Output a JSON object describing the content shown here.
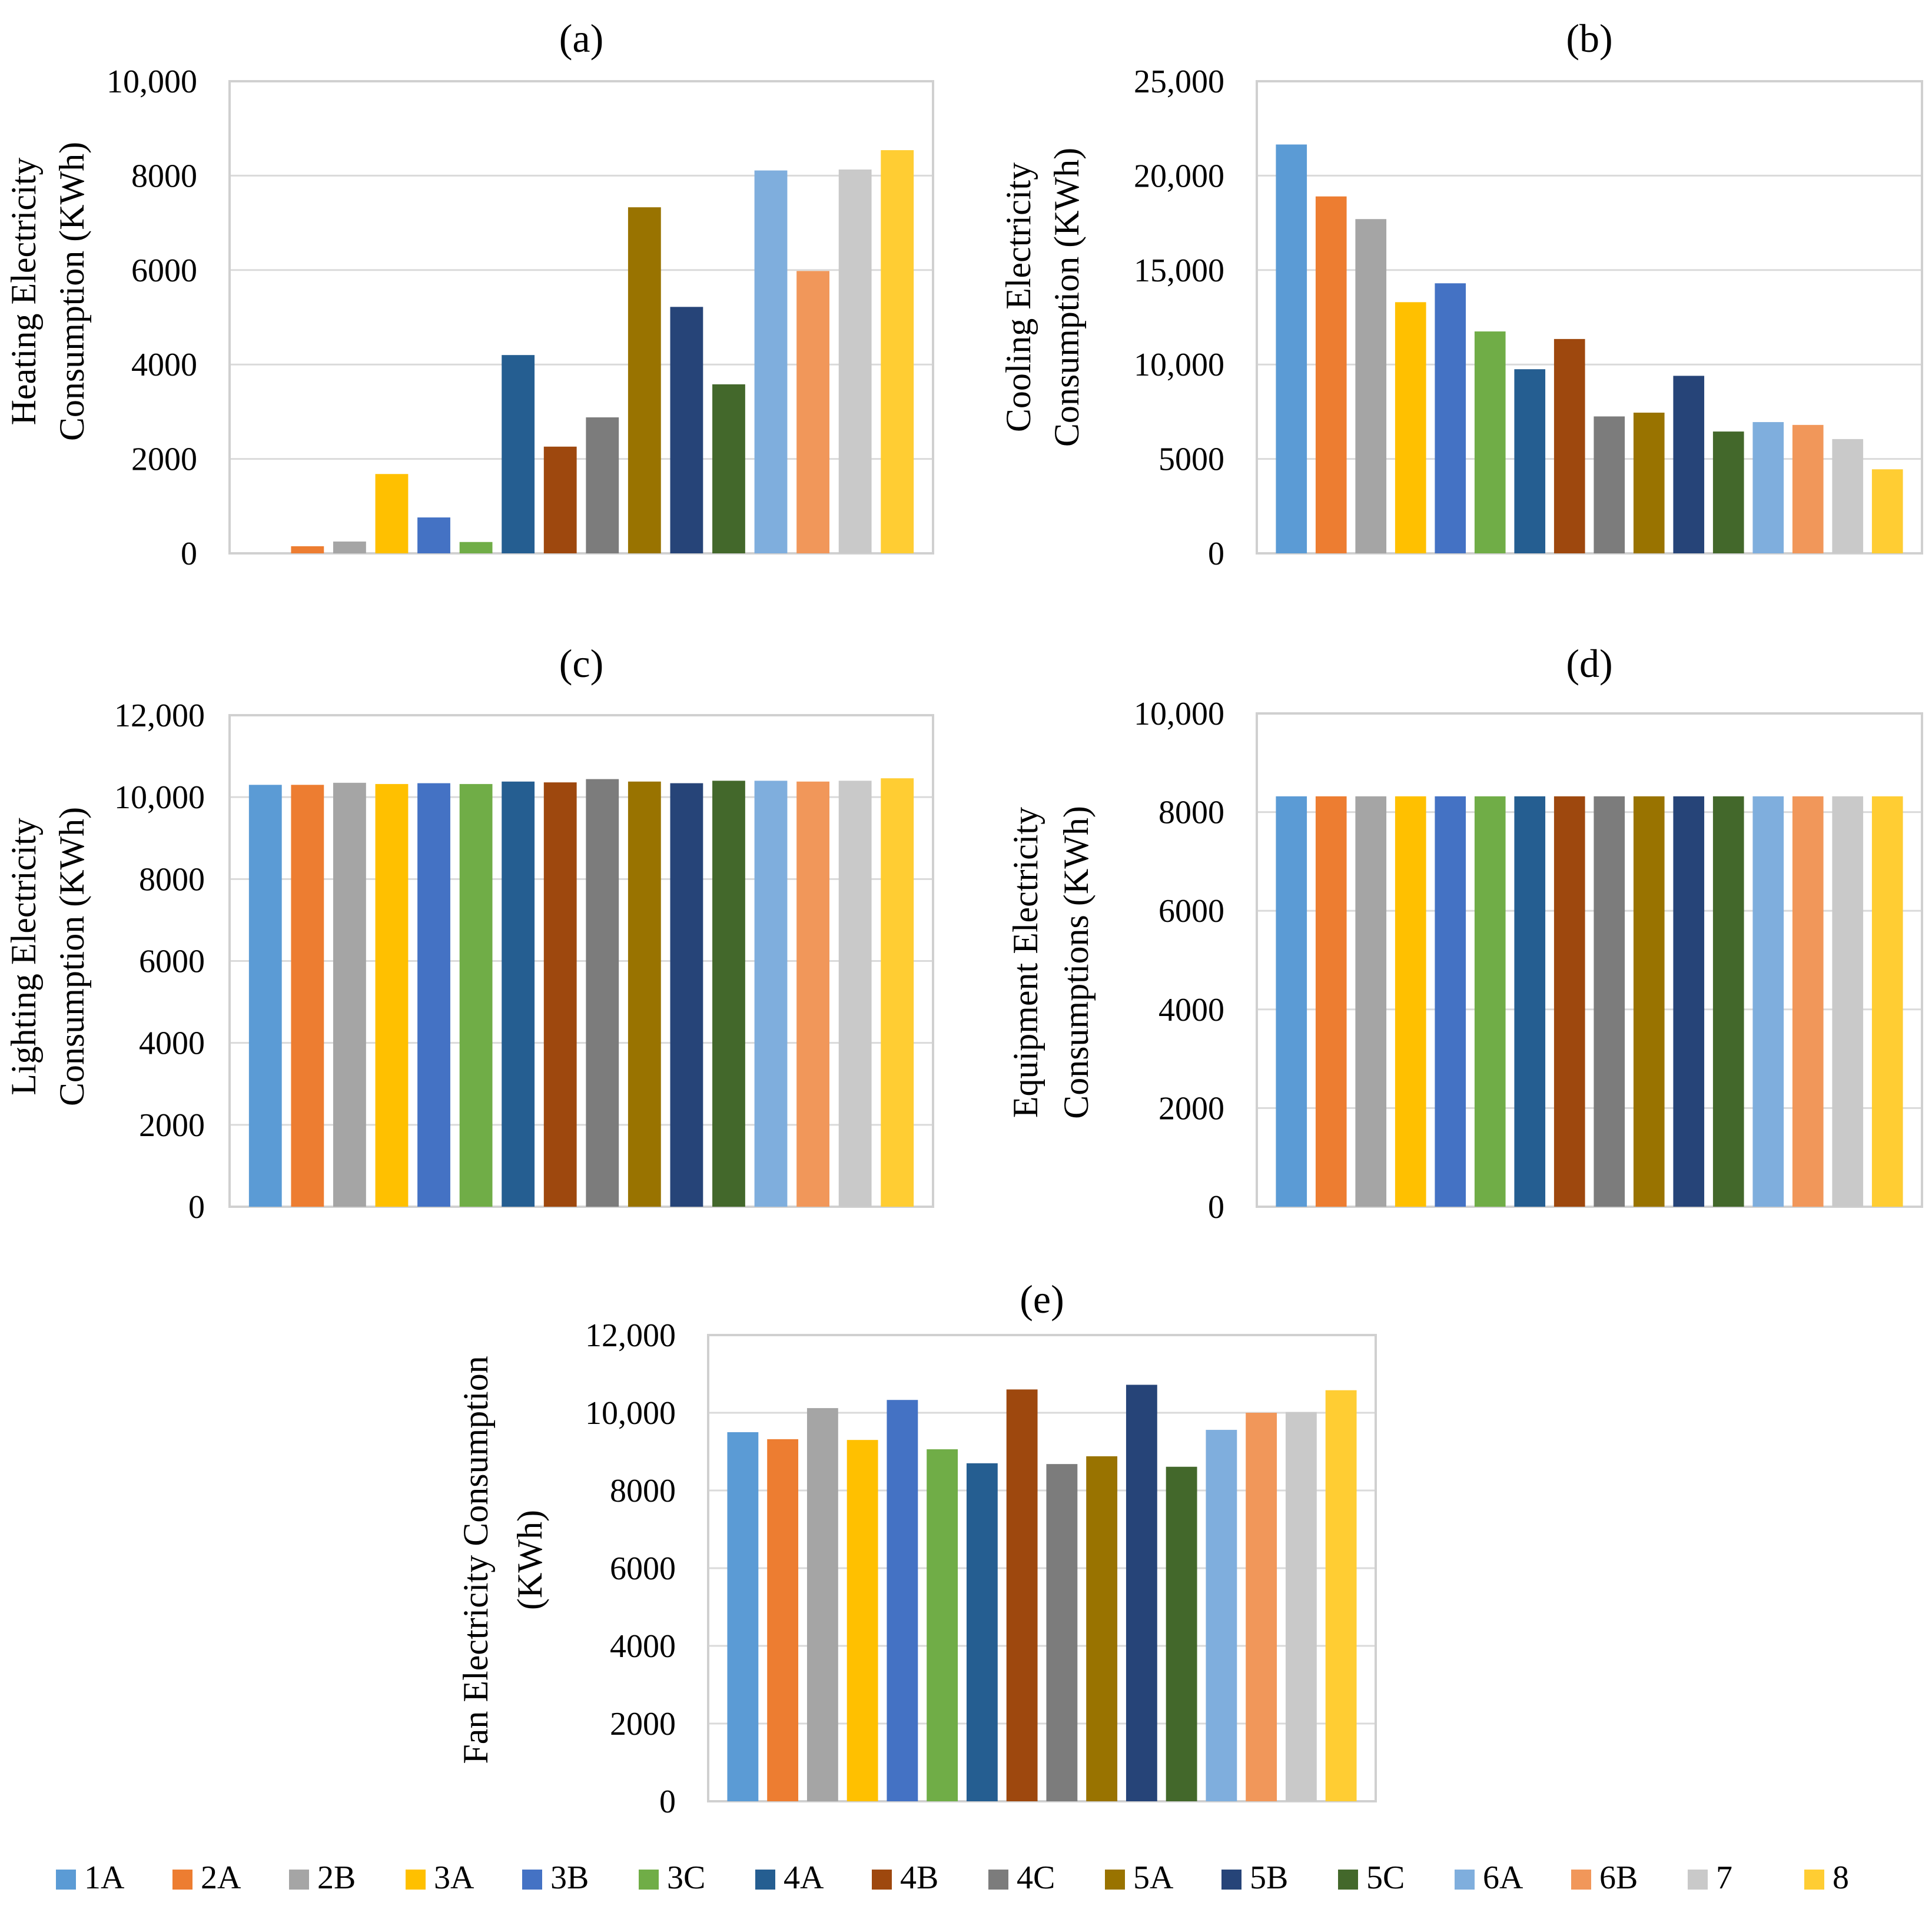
{
  "figure": {
    "categories": [
      "1A",
      "2A",
      "2B",
      "3A",
      "3B",
      "3C",
      "4A",
      "4B",
      "4C",
      "5A",
      "5B",
      "5C",
      "6A",
      "6B",
      "7",
      "8"
    ],
    "colors": [
      "#5B9BD5",
      "#ED7D31",
      "#A5A5A5",
      "#FFC000",
      "#4472C4",
      "#70AD47",
      "#255E91",
      "#9E480E",
      "#7C7C7C",
      "#997300",
      "#264478",
      "#43682B",
      "#7FAEDD",
      "#F1975A",
      "#C9C9C9",
      "#FFCD33"
    ]
  },
  "chart_data": [
    {
      "id": "a",
      "type": "bar",
      "title": "(a)",
      "ylabel_lines": [
        "Heating Electricity",
        "Consumption (KWh)"
      ],
      "ylim": [
        0,
        10000
      ],
      "yticks": [
        0,
        2000,
        4000,
        6000,
        8000,
        10000
      ],
      "ytick_labels": [
        "0",
        "2000",
        "4000",
        "6000",
        "8000",
        "10,000"
      ],
      "values": [
        0,
        150,
        250,
        1680,
        760,
        240,
        4200,
        2260,
        2880,
        7330,
        5220,
        3580,
        8110,
        5980,
        8130,
        8540
      ]
    },
    {
      "id": "b",
      "type": "bar",
      "title": "(b)",
      "ylabel_lines": [
        "Cooling Electricity",
        "Consumption (KWh)"
      ],
      "ylim": [
        0,
        25000
      ],
      "yticks": [
        0,
        5000,
        10000,
        15000,
        20000,
        25000
      ],
      "ytick_labels": [
        "0",
        "5000",
        "10,000",
        "15,000",
        "20,000",
        "25,000"
      ],
      "values": [
        21650,
        18900,
        17700,
        13300,
        14300,
        11750,
        9750,
        11350,
        7250,
        7450,
        9400,
        6450,
        6950,
        6800,
        6050,
        4450
      ]
    },
    {
      "id": "c",
      "type": "bar",
      "title": "(c)",
      "ylabel_lines": [
        "Lighting Electricity",
        "Consumption (KWh)"
      ],
      "ylim": [
        0,
        12000
      ],
      "yticks": [
        0,
        2000,
        4000,
        6000,
        8000,
        10000,
        12000
      ],
      "ytick_labels": [
        "0",
        "2000",
        "4000",
        "6000",
        "8000",
        "10,000",
        "12,000"
      ],
      "values": [
        10300,
        10300,
        10350,
        10320,
        10340,
        10320,
        10380,
        10360,
        10440,
        10380,
        10340,
        10400,
        10400,
        10380,
        10400,
        10460
      ]
    },
    {
      "id": "d",
      "type": "bar",
      "title": "(d)",
      "ylabel_lines": [
        "Equipment Electricity",
        "Consumptions (KWh)"
      ],
      "ylim": [
        0,
        10000
      ],
      "yticks": [
        0,
        2000,
        4000,
        6000,
        8000,
        10000
      ],
      "ytick_labels": [
        "0",
        "2000",
        "4000",
        "6000",
        "8000",
        "10,000"
      ],
      "values": [
        8320,
        8320,
        8320,
        8320,
        8320,
        8320,
        8320,
        8320,
        8320,
        8320,
        8320,
        8320,
        8320,
        8320,
        8320,
        8320
      ]
    },
    {
      "id": "e",
      "type": "bar",
      "title": "(e)",
      "ylabel_lines": [
        "Fan Electricity Consumption",
        "(KWh)"
      ],
      "ylim": [
        0,
        12000
      ],
      "yticks": [
        0,
        2000,
        4000,
        6000,
        8000,
        10000,
        12000
      ],
      "ytick_labels": [
        "0",
        "2000",
        "4000",
        "6000",
        "8000",
        "10,000",
        "12,000"
      ],
      "values": [
        9500,
        9320,
        10120,
        9300,
        10330,
        9060,
        8700,
        10600,
        8680,
        8880,
        10720,
        8610,
        9560,
        10000,
        10020,
        10580
      ]
    }
  ],
  "legend": {
    "position": "bottom",
    "labels": [
      "1A",
      "2A",
      "2B",
      "3A",
      "3B",
      "3C",
      "4A",
      "4B",
      "4C",
      "5A",
      "5B",
      "5C",
      "6A",
      "6B",
      "7",
      "8"
    ]
  }
}
